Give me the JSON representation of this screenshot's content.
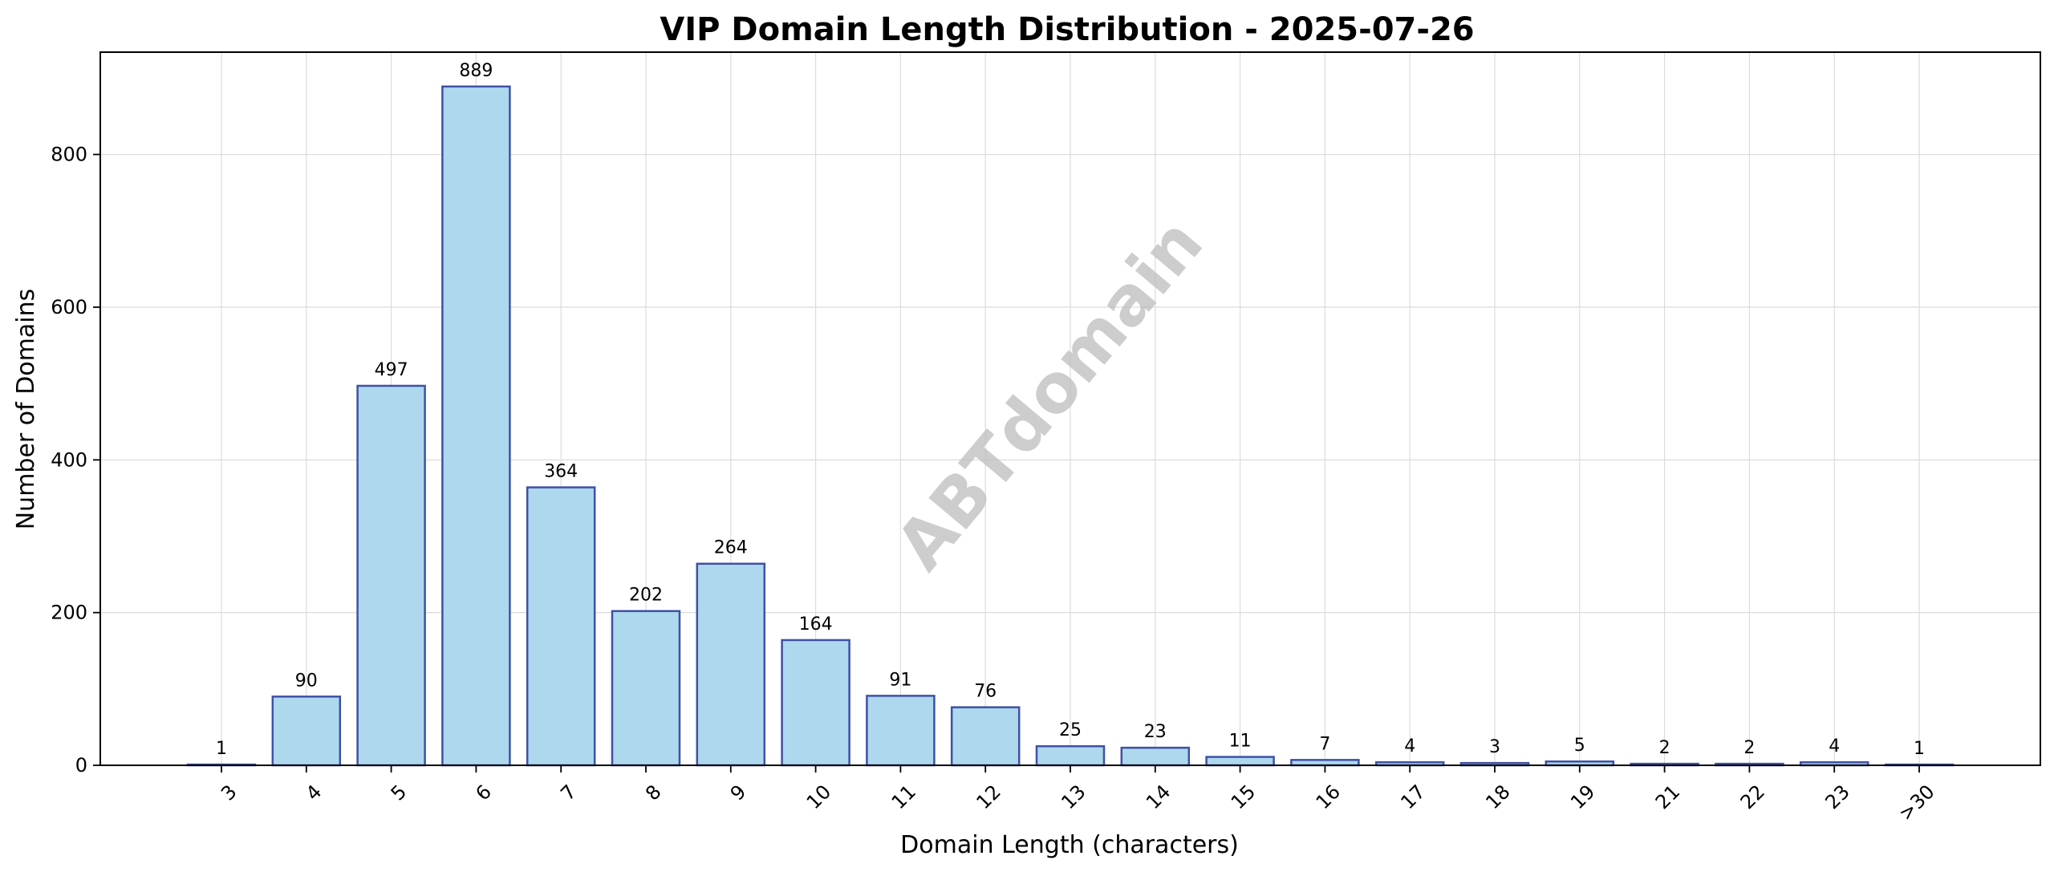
{
  "chart_data": {
    "type": "bar",
    "title": "VIP Domain Length Distribution - 2025-07-26",
    "xlabel": "Domain Length (characters)",
    "ylabel": "Number of Domains",
    "categories": [
      "3",
      "4",
      "5",
      "6",
      "7",
      "8",
      "9",
      "10",
      "11",
      "12",
      "13",
      "14",
      "15",
      "16",
      "17",
      "18",
      "19",
      "21",
      "22",
      "23",
      ">30"
    ],
    "values": [
      1,
      90,
      497,
      889,
      364,
      202,
      264,
      164,
      91,
      76,
      25,
      23,
      11,
      7,
      4,
      3,
      5,
      2,
      2,
      4,
      1
    ],
    "ylim": [
      0,
      934
    ],
    "yticks": [
      0,
      200,
      400,
      600,
      800
    ],
    "grid": true,
    "watermark": "ABTdomain",
    "colors": {
      "bar_fill": "#add8ee",
      "bar_edge": "#3f51a5",
      "grid": "#dcdcdc",
      "watermark": "#bdbdbd"
    }
  }
}
